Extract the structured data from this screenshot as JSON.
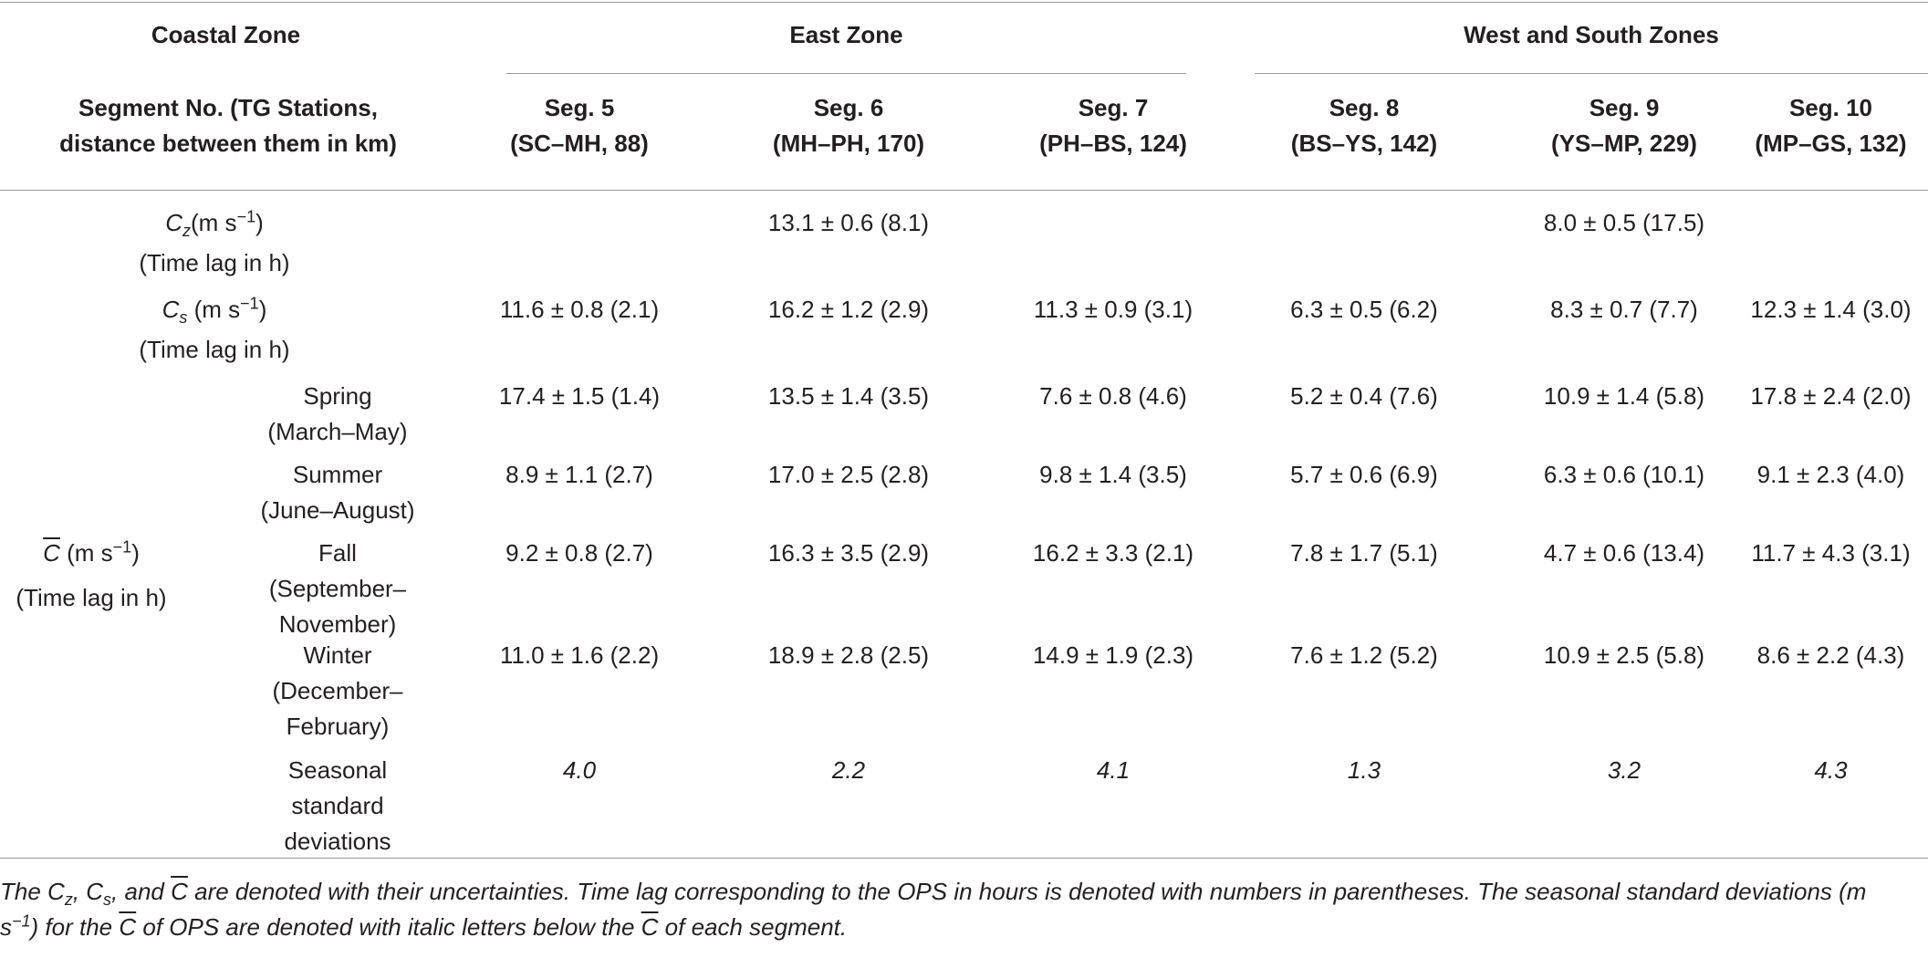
{
  "header": {
    "coastal_zone": "Coastal Zone",
    "east_zone": "East Zone",
    "west_south_zones": "West and South Zones",
    "segment_label_line1": "Segment No. (TG Stations,",
    "segment_label_line2": "distance between them in km)",
    "segments": [
      {
        "name": "Seg. 5",
        "stations": "(SC–MH, 88)"
      },
      {
        "name": "Seg. 6",
        "stations": "(MH–PH, 170)"
      },
      {
        "name": "Seg. 7",
        "stations": "(PH–BS, 124)"
      },
      {
        "name": "Seg. 8",
        "stations": "(BS–YS, 142)"
      },
      {
        "name": "Seg. 9",
        "stations": "(YS–MP, 229)"
      },
      {
        "name": "Seg. 10",
        "stations": "(MP–GS, 132)"
      }
    ]
  },
  "rows": {
    "cz": {
      "symbol": "C",
      "subscript": "z",
      "unit": "(m s",
      "unit_exp": "−1",
      "unit_close": ")",
      "lag": "(Time lag in h)",
      "seg6": "13.1 ± 0.6 (8.1)",
      "seg9": "8.0 ± 0.5 (17.5)"
    },
    "cs": {
      "symbol": "C",
      "subscript": "s",
      "unit": " (m s",
      "unit_exp": "−1",
      "unit_close": ")",
      "lag": "(Time lag in h)",
      "values": [
        "11.6 ± 0.8 (2.1)",
        "16.2 ± 1.2 (2.9)",
        "11.3 ± 0.9 (3.1)",
        "6.3 ± 0.5 (6.2)",
        "8.3 ± 0.7 (7.7)",
        "12.3 ± 1.4 (3.0)"
      ]
    },
    "cbar": {
      "symbol": "C",
      "unit": " (m s",
      "unit_exp": "−1",
      "unit_close": ")",
      "lag": "(Time lag in h)"
    },
    "seasons": [
      {
        "line1": "Spring",
        "line2": "(March–May)",
        "line3": "",
        "values": [
          "17.4 ± 1.5 (1.4)",
          "13.5 ± 1.4 (3.5)",
          "7.6 ± 0.8 (4.6)",
          "5.2 ± 0.4 (7.6)",
          "10.9 ± 1.4 (5.8)",
          "17.8 ± 2.4 (2.0)"
        ]
      },
      {
        "line1": "Summer",
        "line2": "(June–August)",
        "line3": "",
        "values": [
          "8.9 ± 1.1 (2.7)",
          "17.0 ± 2.5 (2.8)",
          "9.8 ± 1.4 (3.5)",
          "5.7 ± 0.6 (6.9)",
          "6.3 ± 0.6 (10.1)",
          "9.1 ± 2.3 (4.0)"
        ]
      },
      {
        "line1": "Fall",
        "line2": "(September–",
        "line3": "November)",
        "values": [
          "9.2 ± 0.8 (2.7)",
          "16.3 ± 3.5 (2.9)",
          "16.2 ± 3.3 (2.1)",
          "7.8 ± 1.7 (5.1)",
          "4.7 ± 0.6 (13.4)",
          "11.7 ± 4.3 (3.1)"
        ]
      },
      {
        "line1": "Winter",
        "line2": "(December–",
        "line3": "February)",
        "values": [
          "11.0 ± 1.6 (2.2)",
          "18.9 ± 2.8 (2.5)",
          "14.9 ± 1.9 (2.3)",
          "7.6 ± 1.2 (5.2)",
          "10.9 ± 2.5 (5.8)",
          "8.6 ± 2.2 (4.3)"
        ]
      }
    ],
    "std": {
      "line1": "Seasonal",
      "line2": "standard",
      "line3": "deviations",
      "values": [
        "4.0",
        "2.2",
        "4.1",
        "1.3",
        "3.2",
        "4.3"
      ]
    }
  },
  "footnote": {
    "p1": "The C",
    "p1_sub": "z",
    "p2": ", C",
    "p2_sub": "s",
    "p3": ", and ",
    "c": "C",
    "p4": " are denoted with their uncertainties. Time lag corresponding to the OPS in hours is denoted with numbers in parentheses. The seasonal standard deviations (m s",
    "p4_sup": "−1",
    "p5": ") for the ",
    "p6": " of OPS are denoted with italic letters below the ",
    "p7": " of each segment."
  }
}
